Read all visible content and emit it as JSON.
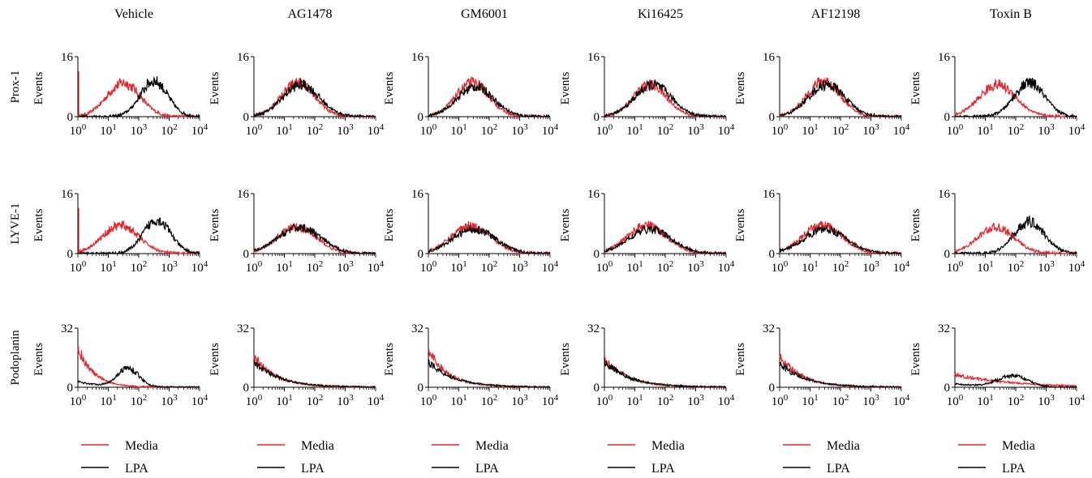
{
  "colors": {
    "media": "#e8242a",
    "lpa": "#000000",
    "axis": "#000000"
  },
  "legend": {
    "media": "Media",
    "lpa": "LPA"
  },
  "y_axis_label": "Events",
  "columns": [
    "Vehicle",
    "AG1478",
    "GM6001",
    "Ki16425",
    "AF12198",
    "Toxin B"
  ],
  "rows": [
    {
      "label": "Prox-1",
      "ymax": 16
    },
    {
      "label": "LYVE-1",
      "ymax": 16
    },
    {
      "label": "Podoplanin",
      "ymax": 32
    }
  ],
  "x_ticks": [
    {
      "base": "10",
      "exp": "0"
    },
    {
      "base": "10",
      "exp": "1"
    },
    {
      "base": "10",
      "exp": "2"
    },
    {
      "base": "10",
      "exp": "3"
    },
    {
      "base": "10",
      "exp": "4"
    }
  ],
  "x_ticks_vehicle_top": [
    {
      "base": "10",
      "exp": "0"
    },
    {
      "base": "10",
      "exp": "1"
    },
    {
      "base": "10",
      "exp": "3"
    },
    {
      "base": "10",
      "exp": "2"
    },
    {
      "base": "10",
      "exp": "4"
    }
  ],
  "chart_data": {
    "type": "line",
    "subtype": "flow cytometry histogram grid",
    "x_scale": "log",
    "xlim": [
      1,
      10000
    ],
    "series_names": [
      "Media",
      "LPA"
    ],
    "panels": [
      {
        "row": "Prox-1",
        "column": "Vehicle",
        "ylim": [
          0,
          16
        ],
        "series": [
          {
            "name": "Media",
            "type": "gauss",
            "peak_log": 1.5,
            "width": 0.55,
            "height": 9.0
          },
          {
            "name": "LPA",
            "type": "gauss",
            "peak_log": 2.5,
            "width": 0.45,
            "height": 9.5
          }
        ]
      },
      {
        "row": "Prox-1",
        "column": "AG1478",
        "ylim": [
          0,
          16
        ],
        "series": [
          {
            "name": "Media",
            "type": "gauss",
            "peak_log": 1.45,
            "width": 0.55,
            "height": 9.0
          },
          {
            "name": "LPA",
            "type": "gauss",
            "peak_log": 1.55,
            "width": 0.6,
            "height": 8.5
          }
        ]
      },
      {
        "row": "Prox-1",
        "column": "GM6001",
        "ylim": [
          0,
          16
        ],
        "series": [
          {
            "name": "Media",
            "type": "gauss",
            "peak_log": 1.45,
            "width": 0.55,
            "height": 9.0
          },
          {
            "name": "LPA",
            "type": "gauss",
            "peak_log": 1.55,
            "width": 0.6,
            "height": 8.0
          }
        ]
      },
      {
        "row": "Prox-1",
        "column": "Ki16425",
        "ylim": [
          0,
          16
        ],
        "series": [
          {
            "name": "Media",
            "type": "gauss",
            "peak_log": 1.5,
            "width": 0.55,
            "height": 8.5
          },
          {
            "name": "LPA",
            "type": "gauss",
            "peak_log": 1.6,
            "width": 0.6,
            "height": 8.5
          }
        ]
      },
      {
        "row": "Prox-1",
        "column": "AF12198",
        "ylim": [
          0,
          16
        ],
        "series": [
          {
            "name": "Media",
            "type": "gauss",
            "peak_log": 1.45,
            "width": 0.55,
            "height": 9.5
          },
          {
            "name": "LPA",
            "type": "gauss",
            "peak_log": 1.55,
            "width": 0.6,
            "height": 8.5
          }
        ]
      },
      {
        "row": "Prox-1",
        "column": "Toxin B",
        "ylim": [
          0,
          16
        ],
        "series": [
          {
            "name": "Media",
            "type": "gauss",
            "peak_log": 1.4,
            "width": 0.6,
            "height": 8.5
          },
          {
            "name": "LPA",
            "type": "gauss",
            "peak_log": 2.45,
            "width": 0.5,
            "height": 9.0
          }
        ]
      },
      {
        "row": "LYVE-1",
        "column": "Vehicle",
        "ylim": [
          0,
          16
        ],
        "series": [
          {
            "name": "Media",
            "type": "gauss",
            "peak_log": 1.4,
            "width": 0.6,
            "height": 7.5
          },
          {
            "name": "LPA",
            "type": "gauss",
            "peak_log": 2.6,
            "width": 0.45,
            "height": 9.0
          }
        ]
      },
      {
        "row": "LYVE-1",
        "column": "AG1478",
        "ylim": [
          0,
          16
        ],
        "series": [
          {
            "name": "Media",
            "type": "gauss",
            "peak_log": 1.4,
            "width": 0.65,
            "height": 7.0
          },
          {
            "name": "LPA",
            "type": "gauss",
            "peak_log": 1.5,
            "width": 0.7,
            "height": 7.0
          }
        ]
      },
      {
        "row": "LYVE-1",
        "column": "GM6001",
        "ylim": [
          0,
          16
        ],
        "series": [
          {
            "name": "Media",
            "type": "gauss",
            "peak_log": 1.4,
            "width": 0.65,
            "height": 7.5
          },
          {
            "name": "LPA",
            "type": "gauss",
            "peak_log": 1.5,
            "width": 0.7,
            "height": 6.5
          }
        ]
      },
      {
        "row": "LYVE-1",
        "column": "Ki16425",
        "ylim": [
          0,
          16
        ],
        "series": [
          {
            "name": "Media",
            "type": "gauss",
            "peak_log": 1.4,
            "width": 0.65,
            "height": 7.5
          },
          {
            "name": "LPA",
            "type": "gauss",
            "peak_log": 1.5,
            "width": 0.7,
            "height": 6.5
          }
        ]
      },
      {
        "row": "LYVE-1",
        "column": "AF12198",
        "ylim": [
          0,
          16
        ],
        "series": [
          {
            "name": "Media",
            "type": "gauss",
            "peak_log": 1.4,
            "width": 0.65,
            "height": 7.5
          },
          {
            "name": "LPA",
            "type": "gauss",
            "peak_log": 1.5,
            "width": 0.7,
            "height": 6.5
          }
        ]
      },
      {
        "row": "LYVE-1",
        "column": "Toxin B",
        "ylim": [
          0,
          16
        ],
        "series": [
          {
            "name": "Media",
            "type": "gauss",
            "peak_log": 1.35,
            "width": 0.6,
            "height": 7.0
          },
          {
            "name": "LPA",
            "type": "gauss",
            "peak_log": 2.45,
            "width": 0.5,
            "height": 8.5
          }
        ]
      },
      {
        "row": "Podoplanin",
        "column": "Vehicle",
        "ylim": [
          0,
          32
        ],
        "series": [
          {
            "name": "Media",
            "type": "decay",
            "start": 22,
            "rate": 2.0,
            "height": 0
          },
          {
            "name": "LPA",
            "type": "gauss",
            "peak_log": 1.65,
            "width": 0.35,
            "height": 10.0,
            "base": 3
          }
        ]
      },
      {
        "row": "Podoplanin",
        "column": "AG1478",
        "ylim": [
          0,
          32
        ],
        "series": [
          {
            "name": "Media",
            "type": "decay",
            "start": 17,
            "rate": 1.4,
            "height": 0
          },
          {
            "name": "LPA",
            "type": "decay",
            "start": 14,
            "rate": 1.2,
            "height": 0
          }
        ]
      },
      {
        "row": "Podoplanin",
        "column": "GM6001",
        "ylim": [
          0,
          32
        ],
        "series": [
          {
            "name": "Media",
            "type": "decay",
            "start": 20,
            "rate": 1.5,
            "height": 0
          },
          {
            "name": "LPA",
            "type": "decay",
            "start": 14,
            "rate": 1.2,
            "height": 0
          }
        ]
      },
      {
        "row": "Podoplanin",
        "column": "Ki16425",
        "ylim": [
          0,
          32
        ],
        "series": [
          {
            "name": "Media",
            "type": "decay",
            "start": 15,
            "rate": 1.3,
            "height": 0
          },
          {
            "name": "LPA",
            "type": "decay",
            "start": 14,
            "rate": 1.2,
            "height": 0
          }
        ]
      },
      {
        "row": "Podoplanin",
        "column": "AF12198",
        "ylim": [
          0,
          32
        ],
        "series": [
          {
            "name": "Media",
            "type": "decay",
            "start": 17,
            "rate": 1.4,
            "height": 0
          },
          {
            "name": "LPA",
            "type": "decay",
            "start": 13,
            "rate": 1.2,
            "height": 0
          }
        ]
      },
      {
        "row": "Podoplanin",
        "column": "Toxin B",
        "ylim": [
          0,
          32
        ],
        "series": [
          {
            "name": "Media",
            "type": "decay",
            "start": 7,
            "rate": 0.55,
            "height": 0
          },
          {
            "name": "LPA",
            "type": "gauss",
            "peak_log": 1.9,
            "width": 0.5,
            "height": 6.0,
            "base": 2
          }
        ]
      }
    ]
  }
}
